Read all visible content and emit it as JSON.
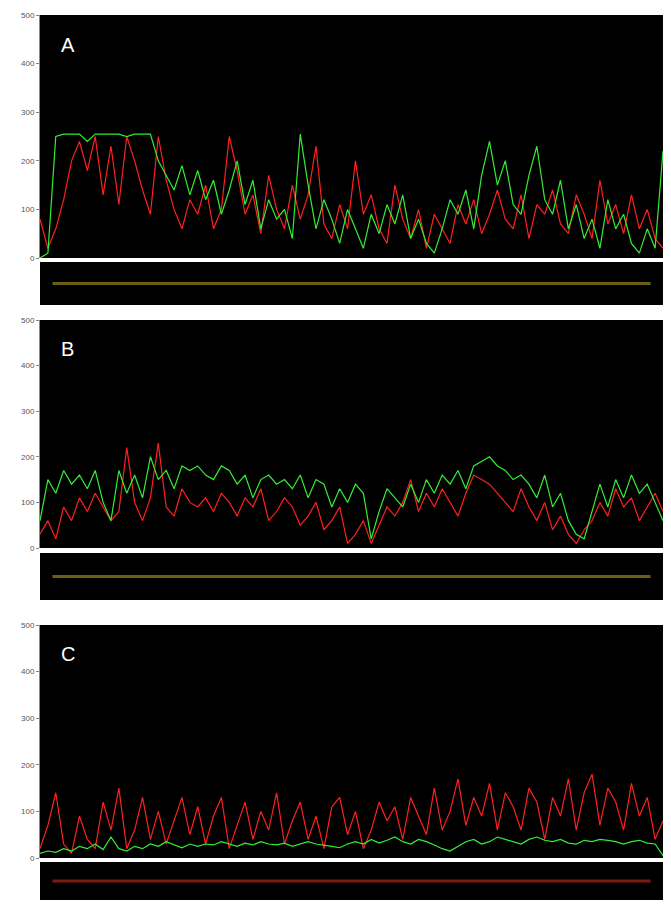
{
  "chart_data": [
    {
      "type": "line",
      "title": "A",
      "tick_labels": "y",
      "grid": false,
      "x": [
        0,
        1,
        2,
        3,
        4,
        5,
        6,
        7,
        8,
        9,
        10,
        11,
        12,
        13,
        14,
        15,
        16,
        17,
        18,
        19,
        20,
        21,
        22,
        23,
        24,
        25,
        26,
        27,
        28,
        29,
        30,
        31,
        32,
        33,
        34,
        35,
        36,
        37,
        38,
        39,
        40,
        41,
        42,
        43,
        44,
        45,
        46,
        47,
        48,
        49,
        50,
        51,
        52,
        53,
        54,
        55,
        56,
        57,
        58,
        59,
        60,
        61,
        62,
        63,
        64,
        65,
        66,
        67,
        68,
        69,
        70,
        71,
        72,
        73,
        74,
        75,
        76,
        77,
        78,
        79
      ],
      "xlim": [
        0,
        79
      ],
      "ylim": [
        0,
        500
      ],
      "yticks": [
        0,
        100,
        200,
        300,
        400,
        500
      ],
      "series": [
        {
          "color": "#ff2020",
          "values": [
            80,
            20,
            60,
            120,
            200,
            240,
            180,
            250,
            130,
            230,
            110,
            250,
            200,
            140,
            90,
            250,
            160,
            100,
            60,
            120,
            90,
            150,
            60,
            100,
            250,
            180,
            90,
            130,
            50,
            170,
            100,
            60,
            150,
            80,
            130,
            230,
            70,
            40,
            110,
            60,
            200,
            90,
            130,
            60,
            30,
            150,
            80,
            40,
            100,
            20,
            90,
            60,
            30,
            110,
            70,
            120,
            50,
            90,
            140,
            80,
            60,
            130,
            40,
            110,
            90,
            140,
            70,
            50,
            130,
            90,
            40,
            160,
            70,
            110,
            50,
            130,
            60,
            100,
            40,
            20
          ]
        },
        {
          "color": "#33ee33",
          "values": [
            0,
            10,
            250,
            255,
            255,
            255,
            240,
            255,
            255,
            255,
            255,
            250,
            255,
            255,
            255,
            200,
            170,
            140,
            190,
            130,
            180,
            120,
            160,
            90,
            140,
            200,
            110,
            160,
            60,
            120,
            80,
            100,
            40,
            255,
            150,
            60,
            120,
            80,
            30,
            100,
            60,
            20,
            90,
            50,
            110,
            70,
            130,
            40,
            80,
            30,
            10,
            60,
            120,
            90,
            140,
            60,
            170,
            240,
            150,
            200,
            110,
            90,
            170,
            230,
            120,
            90,
            160,
            60,
            110,
            40,
            80,
            20,
            120,
            60,
            90,
            30,
            10,
            60,
            20,
            220
          ]
        }
      ]
    },
    {
      "type": "line",
      "title": "B",
      "tick_labels": "y",
      "grid": false,
      "x": [
        0,
        1,
        2,
        3,
        4,
        5,
        6,
        7,
        8,
        9,
        10,
        11,
        12,
        13,
        14,
        15,
        16,
        17,
        18,
        19,
        20,
        21,
        22,
        23,
        24,
        25,
        26,
        27,
        28,
        29,
        30,
        31,
        32,
        33,
        34,
        35,
        36,
        37,
        38,
        39,
        40,
        41,
        42,
        43,
        44,
        45,
        46,
        47,
        48,
        49,
        50,
        51,
        52,
        53,
        54,
        55,
        56,
        57,
        58,
        59,
        60,
        61,
        62,
        63,
        64,
        65,
        66,
        67,
        68,
        69,
        70,
        71,
        72,
        73,
        74,
        75,
        76,
        77,
        78,
        79
      ],
      "xlim": [
        0,
        79
      ],
      "ylim": [
        0,
        500
      ],
      "yticks": [
        0,
        100,
        200,
        300,
        400,
        500
      ],
      "series": [
        {
          "color": "#ff2020",
          "values": [
            30,
            60,
            20,
            90,
            60,
            110,
            80,
            120,
            90,
            60,
            80,
            220,
            100,
            60,
            110,
            230,
            90,
            70,
            130,
            100,
            90,
            110,
            80,
            120,
            100,
            70,
            110,
            90,
            130,
            60,
            80,
            110,
            90,
            50,
            70,
            100,
            40,
            60,
            90,
            10,
            30,
            60,
            10,
            50,
            90,
            70,
            100,
            150,
            80,
            120,
            90,
            130,
            100,
            70,
            120,
            160,
            150,
            140,
            120,
            100,
            80,
            130,
            90,
            60,
            100,
            40,
            70,
            30,
            10,
            40,
            60,
            100,
            70,
            130,
            90,
            110,
            60,
            90,
            120,
            80
          ]
        },
        {
          "color": "#33ee33",
          "values": [
            60,
            150,
            120,
            170,
            140,
            160,
            130,
            170,
            100,
            60,
            170,
            120,
            160,
            110,
            200,
            150,
            170,
            130,
            180,
            170,
            180,
            160,
            150,
            180,
            170,
            140,
            160,
            110,
            150,
            160,
            140,
            150,
            130,
            160,
            110,
            150,
            140,
            90,
            130,
            100,
            140,
            120,
            20,
            80,
            130,
            110,
            90,
            140,
            100,
            150,
            120,
            160,
            140,
            170,
            130,
            180,
            190,
            200,
            180,
            170,
            150,
            160,
            140,
            110,
            160,
            90,
            120,
            60,
            30,
            20,
            80,
            140,
            90,
            150,
            110,
            160,
            120,
            140,
            100,
            60
          ]
        }
      ]
    },
    {
      "type": "line",
      "title": "C",
      "tick_labels": "y",
      "grid": false,
      "x": [
        0,
        1,
        2,
        3,
        4,
        5,
        6,
        7,
        8,
        9,
        10,
        11,
        12,
        13,
        14,
        15,
        16,
        17,
        18,
        19,
        20,
        21,
        22,
        23,
        24,
        25,
        26,
        27,
        28,
        29,
        30,
        31,
        32,
        33,
        34,
        35,
        36,
        37,
        38,
        39,
        40,
        41,
        42,
        43,
        44,
        45,
        46,
        47,
        48,
        49,
        50,
        51,
        52,
        53,
        54,
        55,
        56,
        57,
        58,
        59,
        60,
        61,
        62,
        63,
        64,
        65,
        66,
        67,
        68,
        69,
        70,
        71,
        72,
        73,
        74,
        75,
        76,
        77,
        78,
        79
      ],
      "xlim": [
        0,
        79
      ],
      "ylim": [
        0,
        500
      ],
      "yticks": [
        0,
        100,
        200,
        300,
        400,
        500
      ],
      "series": [
        {
          "color": "#ff2020",
          "values": [
            20,
            70,
            140,
            30,
            10,
            90,
            40,
            20,
            120,
            60,
            150,
            20,
            60,
            130,
            40,
            100,
            30,
            80,
            130,
            50,
            110,
            30,
            90,
            130,
            20,
            70,
            120,
            40,
            100,
            60,
            140,
            30,
            80,
            120,
            40,
            90,
            20,
            110,
            130,
            50,
            100,
            20,
            60,
            120,
            80,
            110,
            40,
            130,
            90,
            50,
            150,
            60,
            100,
            170,
            70,
            130,
            90,
            160,
            60,
            140,
            110,
            60,
            150,
            120,
            40,
            130,
            90,
            170,
            60,
            140,
            180,
            70,
            150,
            120,
            60,
            160,
            90,
            130,
            40,
            80
          ]
        },
        {
          "color": "#33ee33",
          "values": [
            10,
            15,
            12,
            20,
            15,
            25,
            20,
            30,
            18,
            45,
            20,
            15,
            25,
            20,
            30,
            25,
            35,
            28,
            22,
            30,
            25,
            30,
            28,
            35,
            30,
            25,
            32,
            28,
            35,
            30,
            28,
            32,
            25,
            30,
            35,
            30,
            28,
            25,
            22,
            30,
            35,
            30,
            40,
            32,
            38,
            45,
            35,
            30,
            40,
            35,
            28,
            20,
            15,
            25,
            35,
            40,
            30,
            35,
            45,
            40,
            35,
            30,
            40,
            45,
            38,
            35,
            40,
            32,
            30,
            38,
            35,
            40,
            38,
            35,
            30,
            35,
            38,
            32,
            30,
            5
          ]
        }
      ]
    }
  ]
}
